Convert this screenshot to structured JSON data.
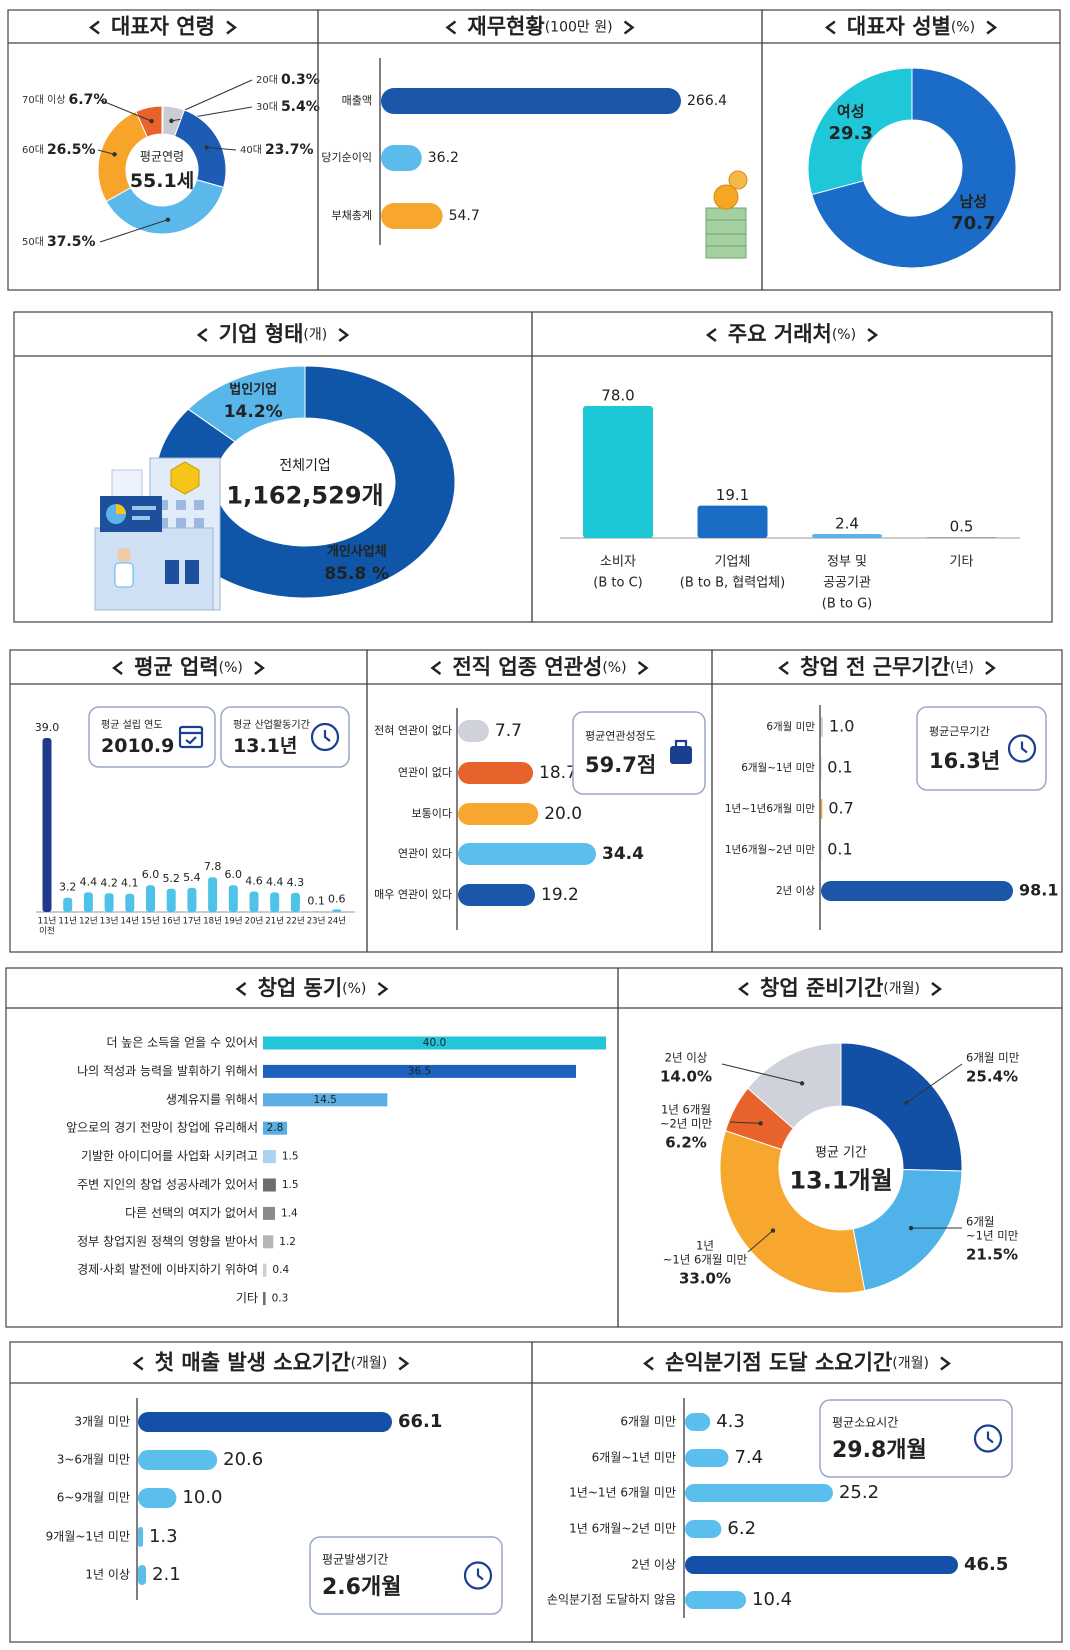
{
  "chart_data": [
    {
      "type": "pie",
      "title": "대표자 연령",
      "categories": [
        "20대",
        "30대",
        "40대",
        "50대",
        "60대",
        "70대 이상"
      ],
      "values": [
        0.3,
        5.4,
        23.7,
        37.5,
        26.5,
        6.7
      ],
      "value_labels": [
        "0.3%",
        "5.4%",
        "23.7%",
        "37.5%",
        "26.5%",
        "6.7%"
      ],
      "colors": [
        "#1b3f8f",
        "#c9ccd4",
        "#1d5cb4",
        "#5ab8ea",
        "#f6a52a",
        "#e8622c"
      ],
      "center_label": "평균연령",
      "center_value": "55.1세"
    },
    {
      "type": "barh",
      "title": "재무현황",
      "unit": "(100만 원)",
      "categories": [
        "매출액",
        "당기순이익",
        "부채총계"
      ],
      "values": [
        266.4,
        36.2,
        54.7
      ],
      "colors": [
        "#1a57a8",
        "#5bbcec",
        "#f7a72d"
      ]
    },
    {
      "type": "pie",
      "title": "대표자 성별",
      "unit": "(%)",
      "categories": [
        "여성",
        "남성"
      ],
      "values": [
        29.3,
        70.7
      ],
      "colors": [
        "#1ec8d9",
        "#1a6cc8"
      ]
    },
    {
      "type": "pie",
      "title": "기업 형태",
      "unit": "(개)",
      "categories": [
        "법인기업",
        "개인사업체"
      ],
      "values": [
        14.2,
        85.8
      ],
      "value_labels": [
        "14.2%",
        "85.8 %"
      ],
      "colors": [
        "#58b6ea",
        "#0f55a8"
      ],
      "center_label": "전체기업",
      "center_value": "1,162,529개"
    },
    {
      "type": "bar",
      "title": "주요 거래처",
      "unit": "(%)",
      "categories": [
        [
          "소비자",
          "(B to C)"
        ],
        [
          "기업체",
          "(B to B, 협력업체)"
        ],
        [
          "정부 및",
          "공공기관",
          "(B to G)"
        ],
        [
          "기타"
        ]
      ],
      "values": [
        78.0,
        19.1,
        2.4,
        0.5
      ],
      "value_labels": [
        "78.0",
        "19.1",
        "2.4",
        "0.5"
      ],
      "colors": [
        "#1cc7d6",
        "#1a6cc4",
        "#5ab6ea",
        "#9a9a9a"
      ]
    },
    {
      "type": "bar",
      "title": "평균 업력",
      "unit": "(%)",
      "categories": [
        [
          "11년",
          "이전"
        ],
        [
          "11년"
        ],
        [
          "12년"
        ],
        [
          "13년"
        ],
        [
          "14년"
        ],
        [
          "15년"
        ],
        [
          "16년"
        ],
        [
          "17년"
        ],
        [
          "18년"
        ],
        [
          "19년"
        ],
        [
          "20년"
        ],
        [
          "21년"
        ],
        [
          "22년"
        ],
        [
          "23년"
        ],
        [
          "24년"
        ]
      ],
      "values": [
        39.0,
        3.2,
        4.4,
        4.2,
        4.1,
        6.0,
        5.2,
        5.4,
        7.8,
        6.0,
        4.6,
        4.4,
        4.3,
        0.1,
        0.6
      ],
      "value_labels": [
        "39.0",
        "3.2",
        "4.4",
        "4.2",
        "4.1",
        "6.0",
        "5.2",
        "5.4",
        "7.8",
        "6.0",
        "4.6",
        "4.4",
        "4.3",
        "0.1",
        "0.6"
      ],
      "colors": [
        "#1f3a8a",
        "#4fc2e9",
        "#4fc2e9",
        "#4fc2e9",
        "#4fc2e9",
        "#4fc2e9",
        "#4fc2e9",
        "#4fc2e9",
        "#4fc2e9",
        "#4fc2e9",
        "#4fc2e9",
        "#4fc2e9",
        "#4fc2e9",
        "#4fc2e9",
        "#4fc2e9"
      ],
      "callouts": [
        {
          "label": "평균 설립 연도",
          "value": "2010.9"
        },
        {
          "label": "평균 산업활동기간",
          "value": "13.1년"
        }
      ]
    },
    {
      "type": "barh",
      "title": "전직 업종 연관성",
      "unit": "(%)",
      "categories": [
        "전혀 연관이 없다",
        "연관이 없다",
        "보통이다",
        "연관이 있다",
        "매우 연관이 있다"
      ],
      "values": [
        7.7,
        18.7,
        20.0,
        34.4,
        19.2
      ],
      "value_labels": [
        "7.7",
        "18.7",
        "20.0",
        "34.4",
        "19.2"
      ],
      "colors": [
        "#cfd2d8",
        "#e8632c",
        "#f7a72d",
        "#5bbfee",
        "#1b56a8"
      ],
      "callouts": [
        {
          "label": "평균연관성정도",
          "value": "59.7점"
        }
      ]
    },
    {
      "type": "barh",
      "title": "창업 전 근무기간",
      "unit": "(년)",
      "categories": [
        "6개월 미만",
        "6개월~1년 미만",
        "1년~1년6개월 미만",
        "1년6개월~2년 미만",
        "2년 이상"
      ],
      "values": [
        1.0,
        0.1,
        0.7,
        0.1,
        98.1
      ],
      "value_labels": [
        "1.0",
        "0.1",
        "0.7",
        "0.1",
        "98.1"
      ],
      "colors": [
        "#cfd2d8",
        "#e8632c",
        "#f7a72d",
        "#5bbfee",
        "#1b56a8"
      ],
      "callouts": [
        {
          "label": "평균근무기간",
          "value": "16.3년"
        }
      ]
    },
    {
      "type": "barh",
      "title": "창업 동기",
      "unit": "(%)",
      "categories": [
        "더 높은 소득을 얻을 수 있어서",
        "나의 적성과 능력을 발휘하기 위해서",
        "생계유지를 위해서",
        "앞으로의 경기 전망이 창업에 유리해서",
        "기발한 아이디어를 사업화 시키려고",
        "주변 지인의 창업 성공사례가 있어서",
        "다른 선택의 여지가 없어서",
        "정부 창업지원 정책의 영향을 받아서",
        "경제·사회 발전에 이바지하기 위하여",
        "기타"
      ],
      "values": [
        40.0,
        36.5,
        14.5,
        2.8,
        1.5,
        1.5,
        1.4,
        1.2,
        0.4,
        0.3
      ],
      "value_labels": [
        "40.0",
        "36.5",
        "14.5",
        "2.8",
        "1.5",
        "1.5",
        "1.4",
        "1.2",
        "0.4",
        "0.3"
      ],
      "colors": [
        "#22c6d8",
        "#1b63bf",
        "#5aaee3",
        "#5aaee3",
        "#a9d3f0",
        "#6d6d6d",
        "#8a8a8a",
        "#b5b5b5",
        "#cfcfcf",
        "#6d6d6d"
      ]
    },
    {
      "type": "pie",
      "title": "창업 준비기간",
      "unit": "(개월)",
      "categories": [
        [
          "6개월 미만"
        ],
        [
          "6개월",
          "~1년 미만"
        ],
        [
          "1년",
          "~1년 6개월 미만"
        ],
        [
          "1년 6개월",
          "~2년 미만"
        ],
        [
          "2년 이상"
        ]
      ],
      "values": [
        25.4,
        21.5,
        33.0,
        6.2,
        14.0
      ],
      "value_labels": [
        "25.4%",
        "21.5%",
        "33.0%",
        "6.2%",
        "14.0%"
      ],
      "colors": [
        "#1150a5",
        "#4fb3ea",
        "#f7a72d",
        "#e8622c",
        "#cfd2da"
      ],
      "center_label": "평균 기간",
      "center_value": "13.1개월"
    },
    {
      "type": "barh",
      "title": "첫 매출 발생 소요기간",
      "unit": "(개월)",
      "categories": [
        "3개월 미만",
        "3~6개월 미만",
        "6~9개월 미만",
        "9개월~1년 미만",
        "1년 이상"
      ],
      "values": [
        66.1,
        20.6,
        10.0,
        1.3,
        2.1
      ],
      "value_labels": [
        "66.1",
        "20.6",
        "10.0",
        "1.3",
        "2.1"
      ],
      "colors": [
        "#1450a8",
        "#5bbfee",
        "#5bbfee",
        "#5bbfee",
        "#5bbfee"
      ],
      "callouts": [
        {
          "label": "평균발생기간",
          "value": "2.6개월"
        }
      ]
    },
    {
      "type": "barh",
      "title": "손익분기점 도달 소요기간",
      "unit": "(개월)",
      "categories": [
        "6개월 미만",
        "6개월~1년 미만",
        "1년~1년 6개월 미만",
        "1년 6개월~2년 미만",
        "2년 이상",
        "손익분기점 도달하지 않음"
      ],
      "values": [
        4.3,
        7.4,
        25.2,
        6.2,
        46.5,
        10.4
      ],
      "value_labels": [
        "4.3",
        "7.4",
        "25.2",
        "6.2",
        "46.5",
        "10.4"
      ],
      "colors": [
        "#5bbfee",
        "#5bbfee",
        "#5bbfee",
        "#5bbfee",
        "#1450a8",
        "#5bbfee"
      ],
      "callouts": [
        {
          "label": "평균소요시간",
          "value": "29.8개월"
        }
      ]
    }
  ]
}
